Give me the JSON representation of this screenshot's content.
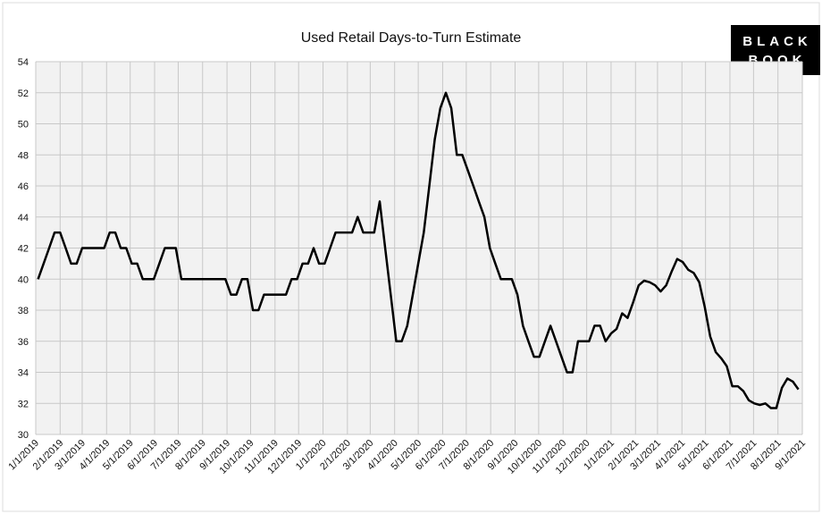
{
  "chart_data": {
    "type": "line",
    "title": "Used Retail Days-to-Turn Estimate",
    "logo": [
      "BLACK",
      "BOOK"
    ],
    "grid": true,
    "ylim": [
      30,
      54
    ],
    "yticks": [
      30,
      32,
      34,
      36,
      38,
      40,
      42,
      44,
      46,
      48,
      50,
      52,
      54
    ],
    "xlim": [
      "1/1/2019",
      "9/1/2021"
    ],
    "xticks": [
      "1/1/2019",
      "2/1/2019",
      "3/1/2019",
      "4/1/2019",
      "5/1/2019",
      "6/1/2019",
      "7/1/2019",
      "8/1/2019",
      "9/1/2019",
      "10/1/2019",
      "11/1/2019",
      "12/1/2019",
      "1/1/2020",
      "2/1/2020",
      "3/1/2020",
      "4/1/2020",
      "5/1/2020",
      "6/1/2020",
      "7/1/2020",
      "8/1/2020",
      "9/1/2020",
      "10/1/2020",
      "11/1/2020",
      "12/1/2020",
      "1/1/2021",
      "2/1/2021",
      "3/1/2021",
      "4/1/2021",
      "5/1/2021",
      "6/1/2021",
      "7/1/2021",
      "8/1/2021",
      "9/1/2021"
    ],
    "x": [
      "1/4/2019",
      "1/11/2019",
      "1/18/2019",
      "1/25/2019",
      "2/1/2019",
      "2/8/2019",
      "2/15/2019",
      "2/22/2019",
      "3/1/2019",
      "3/8/2019",
      "3/15/2019",
      "3/22/2019",
      "3/29/2019",
      "4/5/2019",
      "4/12/2019",
      "4/19/2019",
      "4/26/2019",
      "5/3/2019",
      "5/10/2019",
      "5/17/2019",
      "5/24/2019",
      "5/31/2019",
      "6/7/2019",
      "6/14/2019",
      "6/21/2019",
      "6/28/2019",
      "7/5/2019",
      "7/12/2019",
      "7/19/2019",
      "7/26/2019",
      "8/2/2019",
      "8/9/2019",
      "8/16/2019",
      "8/23/2019",
      "8/30/2019",
      "9/6/2019",
      "9/13/2019",
      "9/20/2019",
      "9/27/2019",
      "10/4/2019",
      "10/11/2019",
      "10/18/2019",
      "10/25/2019",
      "11/1/2019",
      "11/8/2019",
      "11/15/2019",
      "11/22/2019",
      "11/29/2019",
      "12/6/2019",
      "12/13/2019",
      "12/20/2019",
      "12/27/2019",
      "1/3/2020",
      "1/10/2020",
      "1/17/2020",
      "1/24/2020",
      "1/31/2020",
      "2/7/2020",
      "2/14/2020",
      "2/21/2020",
      "2/28/2020",
      "3/6/2020",
      "3/13/2020",
      "3/20/2020",
      "3/27/2020",
      "4/3/2020",
      "4/10/2020",
      "4/17/2020",
      "4/24/2020",
      "5/1/2020",
      "5/8/2020",
      "5/15/2020",
      "5/22/2020",
      "5/29/2020",
      "6/5/2020",
      "6/12/2020",
      "6/19/2020",
      "6/26/2020",
      "7/3/2020",
      "7/10/2020",
      "7/17/2020",
      "7/24/2020",
      "7/31/2020",
      "8/7/2020",
      "8/14/2020",
      "8/21/2020",
      "8/28/2020",
      "9/4/2020",
      "9/11/2020",
      "9/18/2020",
      "9/25/2020",
      "10/2/2020",
      "10/9/2020",
      "10/16/2020",
      "10/23/2020",
      "10/30/2020",
      "11/6/2020",
      "11/13/2020",
      "11/20/2020",
      "11/27/2020",
      "12/4/2020",
      "12/11/2020",
      "12/18/2020",
      "12/25/2020",
      "1/1/2021",
      "1/8/2021",
      "1/15/2021",
      "1/22/2021",
      "1/29/2021",
      "2/5/2021",
      "2/12/2021",
      "2/19/2021",
      "2/26/2021",
      "3/5/2021",
      "3/12/2021",
      "3/19/2021",
      "3/26/2021",
      "4/2/2021",
      "4/9/2021",
      "4/16/2021",
      "4/23/2021",
      "4/30/2021",
      "5/7/2021",
      "5/14/2021",
      "5/21/2021",
      "5/28/2021",
      "6/4/2021",
      "6/11/2021",
      "6/18/2021",
      "6/25/2021",
      "7/2/2021",
      "7/9/2021",
      "7/16/2021",
      "7/23/2021",
      "7/30/2021",
      "8/6/2021",
      "8/13/2021",
      "8/20/2021",
      "8/27/2021"
    ],
    "series": [
      {
        "color": "#000000",
        "values": [
          40,
          41,
          42,
          43,
          43,
          42,
          41,
          41,
          42,
          42,
          42,
          42,
          42,
          43,
          43,
          42,
          42,
          41,
          41,
          40,
          40,
          40,
          41,
          42,
          42,
          42,
          40,
          40,
          40,
          40,
          40,
          40,
          40,
          40,
          40,
          39,
          39,
          40,
          40,
          38,
          38,
          39,
          39,
          39,
          39,
          39,
          40,
          40,
          41,
          41,
          42,
          41,
          41,
          42,
          43,
          43,
          43,
          43,
          44,
          43,
          43,
          43,
          45,
          42,
          39,
          36,
          36,
          37,
          39,
          41,
          43,
          46,
          49,
          51,
          52,
          51,
          48,
          48,
          47,
          46,
          45,
          44,
          42,
          41,
          40,
          40,
          40,
          39,
          37,
          36,
          35,
          35,
          36,
          37,
          36,
          35,
          34,
          34,
          36,
          36,
          36,
          37,
          37,
          36,
          36.5,
          36.8,
          37.8,
          37.5,
          38.5,
          39.6,
          39.9,
          39.8,
          39.6,
          39.2,
          39.6,
          40.5,
          41.3,
          41.1,
          40.6,
          40.4,
          39.8,
          38.2,
          36.3,
          35.3,
          34.9,
          34.4,
          33.1,
          33.1,
          32.8,
          32.2,
          32.0,
          31.9,
          32.0,
          31.7,
          31.7,
          33.0,
          33.6,
          33.4,
          32.9
        ]
      }
    ]
  }
}
